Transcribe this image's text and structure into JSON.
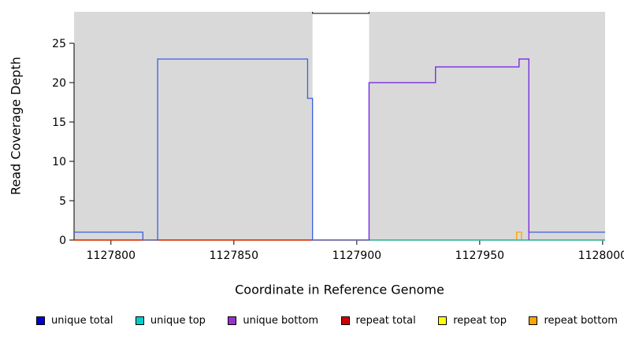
{
  "chart_data": {
    "type": "line",
    "title": "",
    "xlabel": "Coordinate in Reference Genome",
    "ylabel": "Read Coverage Depth",
    "xlim": [
      1127785,
      1128001
    ],
    "ylim": [
      0,
      29
    ],
    "x_ticks": [
      1127800,
      1127850,
      1127900,
      1127950,
      1128000
    ],
    "y_ticks": [
      0,
      5,
      10,
      15,
      20,
      25
    ],
    "grid": false,
    "legend_position": "bottom",
    "axis_color": "#000000",
    "plot_background": "#FFFFFF",
    "coverage_region_color": "#D9D9D9",
    "coverage_regions": [
      {
        "x0": 1127785,
        "x1": 1127882
      },
      {
        "x0": 1127905,
        "x1": 1128001
      }
    ],
    "gap_region": {
      "x0": 1127882,
      "x1": 1127905,
      "outline_depth": 28.8,
      "outline_color": "#000000"
    },
    "series": [
      {
        "name": "repeat top",
        "color": "#FFFF00",
        "points": [
          [
            1127785,
            0
          ],
          [
            1128001,
            0
          ]
        ]
      },
      {
        "name": "repeat bottom",
        "color": "#FFA500",
        "points": [
          [
            1127785,
            0
          ],
          [
            1127965,
            0
          ],
          [
            1127965,
            1
          ],
          [
            1127967,
            1
          ],
          [
            1127967,
            0
          ],
          [
            1128001,
            0
          ]
        ]
      },
      {
        "name": "repeat total",
        "color": "#CD0000",
        "points": [
          [
            1127785,
            0
          ],
          [
            1128001,
            0
          ]
        ]
      },
      {
        "name": "unique top",
        "color": "#00CDCD",
        "points": [
          [
            1127905,
            0
          ],
          [
            1128001,
            0
          ]
        ]
      },
      {
        "name": "unique total",
        "color": "#3C5FE1",
        "points": [
          [
            1127785,
            1
          ],
          [
            1127813,
            1
          ],
          [
            1127813,
            0
          ],
          [
            1127819,
            0
          ],
          [
            1127819,
            23
          ],
          [
            1127880,
            23
          ],
          [
            1127880,
            18
          ],
          [
            1127882,
            18
          ],
          [
            1127882,
            0
          ],
          [
            1127905,
            0
          ],
          [
            1127905,
            20
          ],
          [
            1127932,
            20
          ],
          [
            1127932,
            22
          ],
          [
            1127966,
            22
          ],
          [
            1127966,
            23
          ],
          [
            1127970,
            23
          ],
          [
            1127970,
            1
          ],
          [
            1128001,
            1
          ]
        ]
      },
      {
        "name": "unique bottom",
        "color": "#8A2BE2",
        "points": [
          [
            1127905,
            0
          ],
          [
            1127905,
            20
          ],
          [
            1127932,
            20
          ],
          [
            1127932,
            22
          ],
          [
            1127966,
            22
          ],
          [
            1127966,
            23
          ],
          [
            1127970,
            23
          ],
          [
            1127970,
            0
          ]
        ]
      }
    ],
    "legend": [
      {
        "label": "unique total",
        "color": "#0000CD"
      },
      {
        "label": "unique top",
        "color": "#00CDCD"
      },
      {
        "label": "unique bottom",
        "color": "#9932CC"
      },
      {
        "label": "repeat total",
        "color": "#CD0000"
      },
      {
        "label": "repeat top",
        "color": "#FFFF00"
      },
      {
        "label": "repeat bottom",
        "color": "#FFA500"
      }
    ]
  }
}
